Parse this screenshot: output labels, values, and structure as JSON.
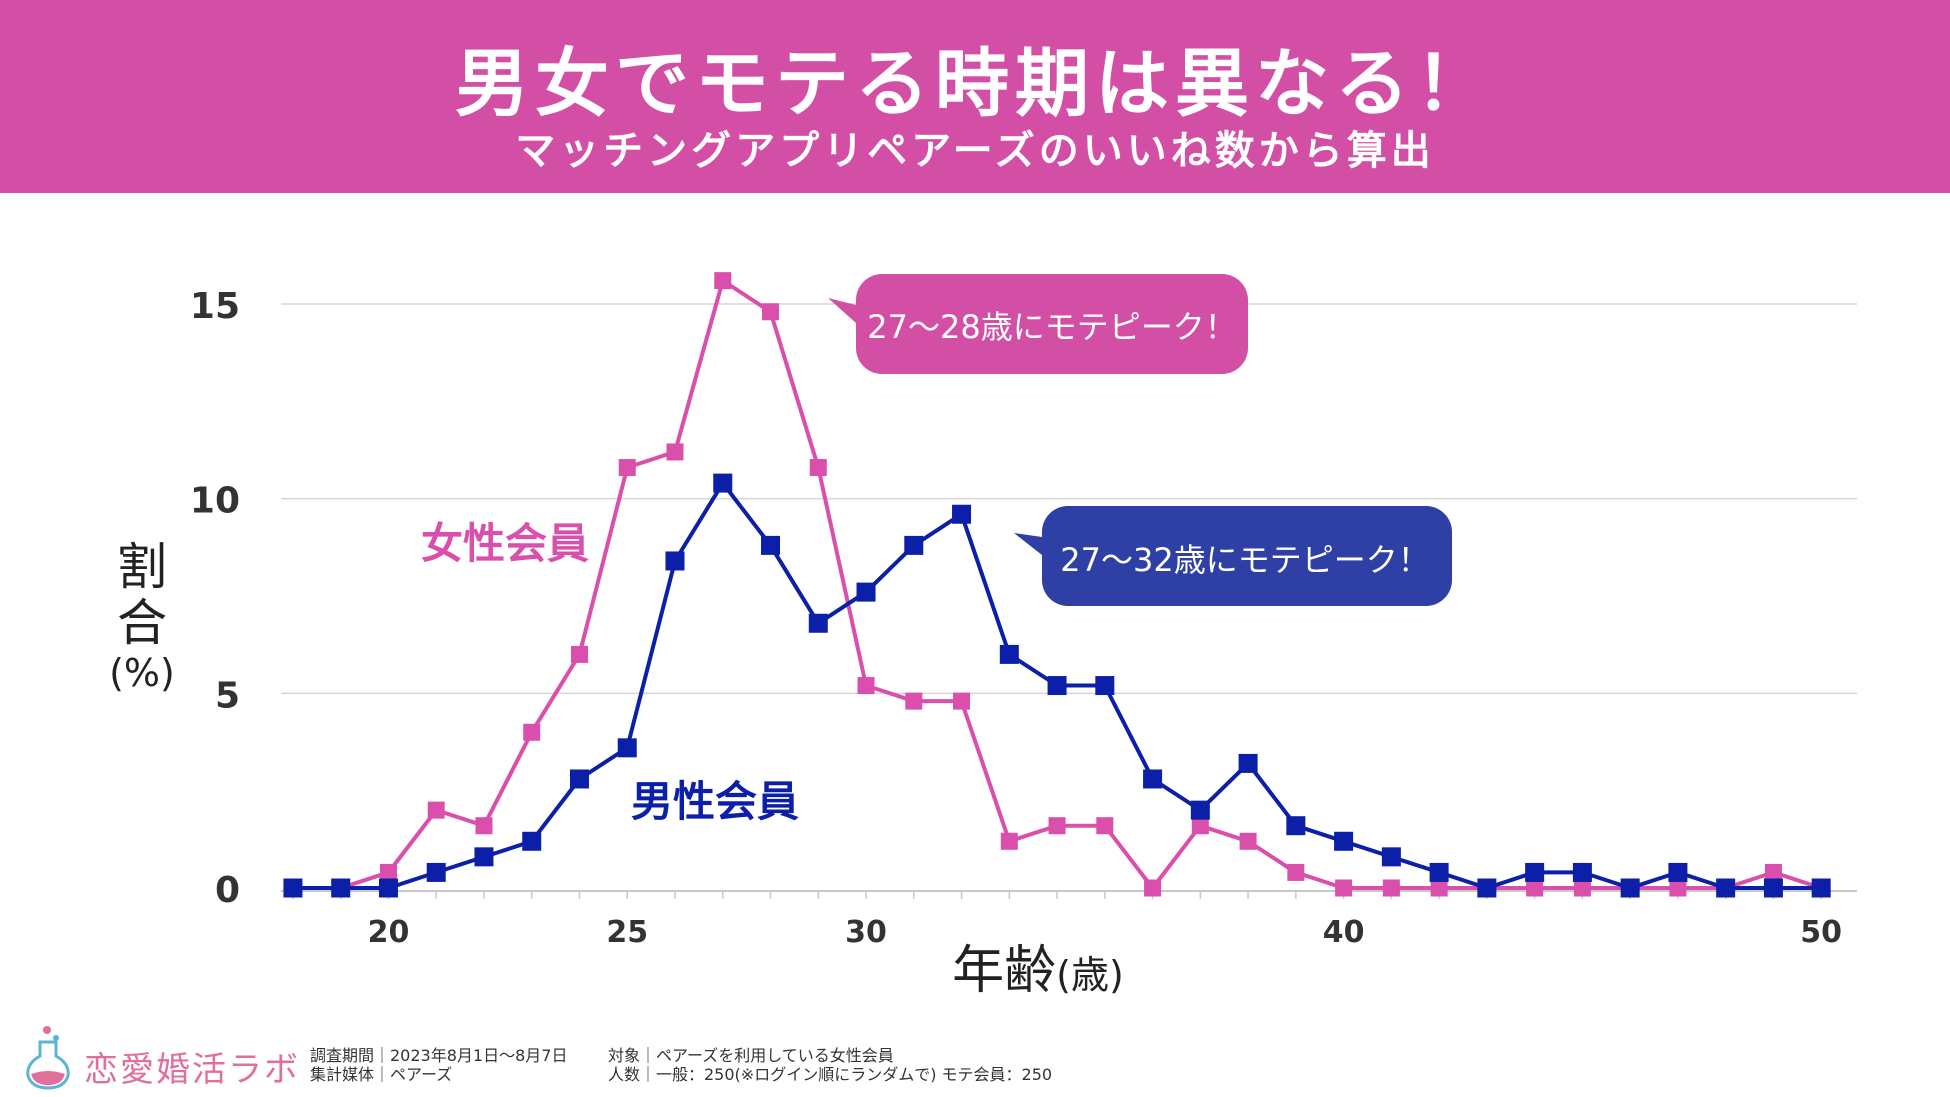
{
  "header": {
    "title": "男女でモテる時期は異なる！",
    "subtitle": "マッチングアプリペアーズのいいね数から算出"
  },
  "chart_data": {
    "type": "line",
    "xlabel": "年齢",
    "xlabel_unit": "(歳)",
    "ylabel_top": "割合",
    "ylabel_unit": "(%)",
    "xlim": [
      17.75,
      50.75
    ],
    "ylim": [
      0,
      15
    ],
    "x_ticks": [
      20,
      25,
      30,
      40,
      50
    ],
    "y_ticks": [
      0,
      5,
      10,
      15
    ],
    "grid": "horizontal",
    "x": [
      18,
      19,
      20,
      21,
      22,
      23,
      24,
      25,
      26,
      27,
      28,
      29,
      30,
      31,
      32,
      33,
      34,
      35,
      36,
      37,
      38,
      39,
      40,
      41,
      42,
      43,
      44,
      45,
      46,
      47,
      48,
      49,
      50
    ],
    "series": [
      {
        "name": "女性会員",
        "color": "#d94fab",
        "values": [
          0,
          0,
          0.4,
          2.0,
          1.6,
          4.0,
          6.0,
          10.8,
          11.2,
          15.6,
          14.8,
          10.8,
          5.2,
          4.8,
          4.8,
          1.2,
          1.6,
          1.6,
          0,
          1.6,
          1.2,
          0.4,
          0,
          0,
          0,
          0,
          0,
          0,
          0,
          0,
          0,
          0.4,
          0
        ]
      },
      {
        "name": "男性会員",
        "color": "#0b1fa8",
        "values": [
          0,
          0,
          0,
          0.4,
          0.8,
          1.2,
          2.8,
          3.6,
          8.4,
          10.4,
          8.8,
          6.8,
          7.6,
          8.8,
          9.6,
          6.0,
          5.2,
          5.2,
          2.8,
          2.0,
          3.2,
          1.6,
          1.2,
          0.8,
          0.4,
          0,
          0.4,
          0.4,
          0,
          0.4,
          0,
          0,
          0
        ]
      }
    ],
    "annotations": [
      {
        "text": "27〜28歳にモテピーク！",
        "color": "#d34fa6"
      },
      {
        "text": "27〜32歳にモテピーク！",
        "color": "#2e3fa6"
      }
    ]
  },
  "footer": {
    "logo_text": "恋愛婚活ラボ",
    "line1_left": "調査期間｜2023年8月1日〜8月7日",
    "line2_left": "集計媒体｜ペアーズ",
    "line1_right": "対象｜ペアーズを利用している女性会員",
    "line2_right": "人数｜一般：250(※ログイン順にランダムで) モテ会員：250"
  }
}
